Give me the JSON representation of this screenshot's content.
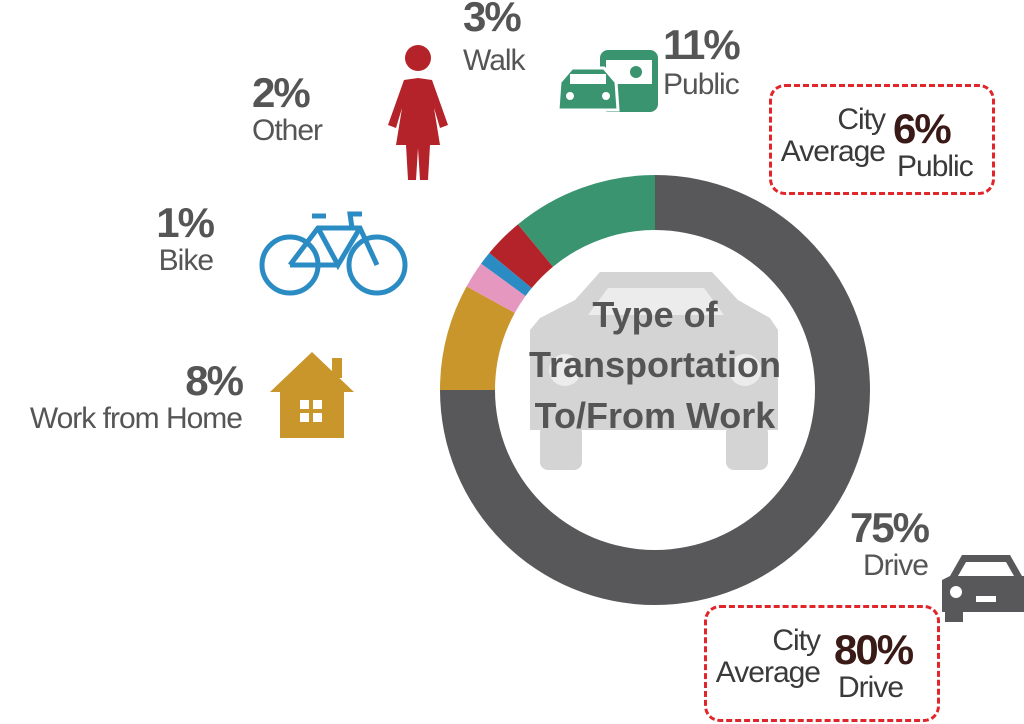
{
  "chart_data": {
    "type": "donut",
    "title": "Type of Transportation To/From Work",
    "categories": [
      "Drive",
      "Work from Home",
      "Other",
      "Bike",
      "Walk",
      "Public"
    ],
    "values": [
      75,
      8,
      2,
      1,
      3,
      11
    ],
    "value_labels": [
      "75%",
      "8%",
      "2%",
      "1%",
      "3%",
      "11%"
    ],
    "colors": [
      "#58585a",
      "#c8962b",
      "#e597c0",
      "#2b8cc4",
      "#b5232a",
      "#3a9470"
    ],
    "annotations": [
      {
        "text": "City Average",
        "value": 6,
        "value_label": "6%",
        "category": "Public"
      },
      {
        "text": "City Average",
        "value": 80,
        "value_label": "80%",
        "category": "Drive"
      }
    ]
  }
}
